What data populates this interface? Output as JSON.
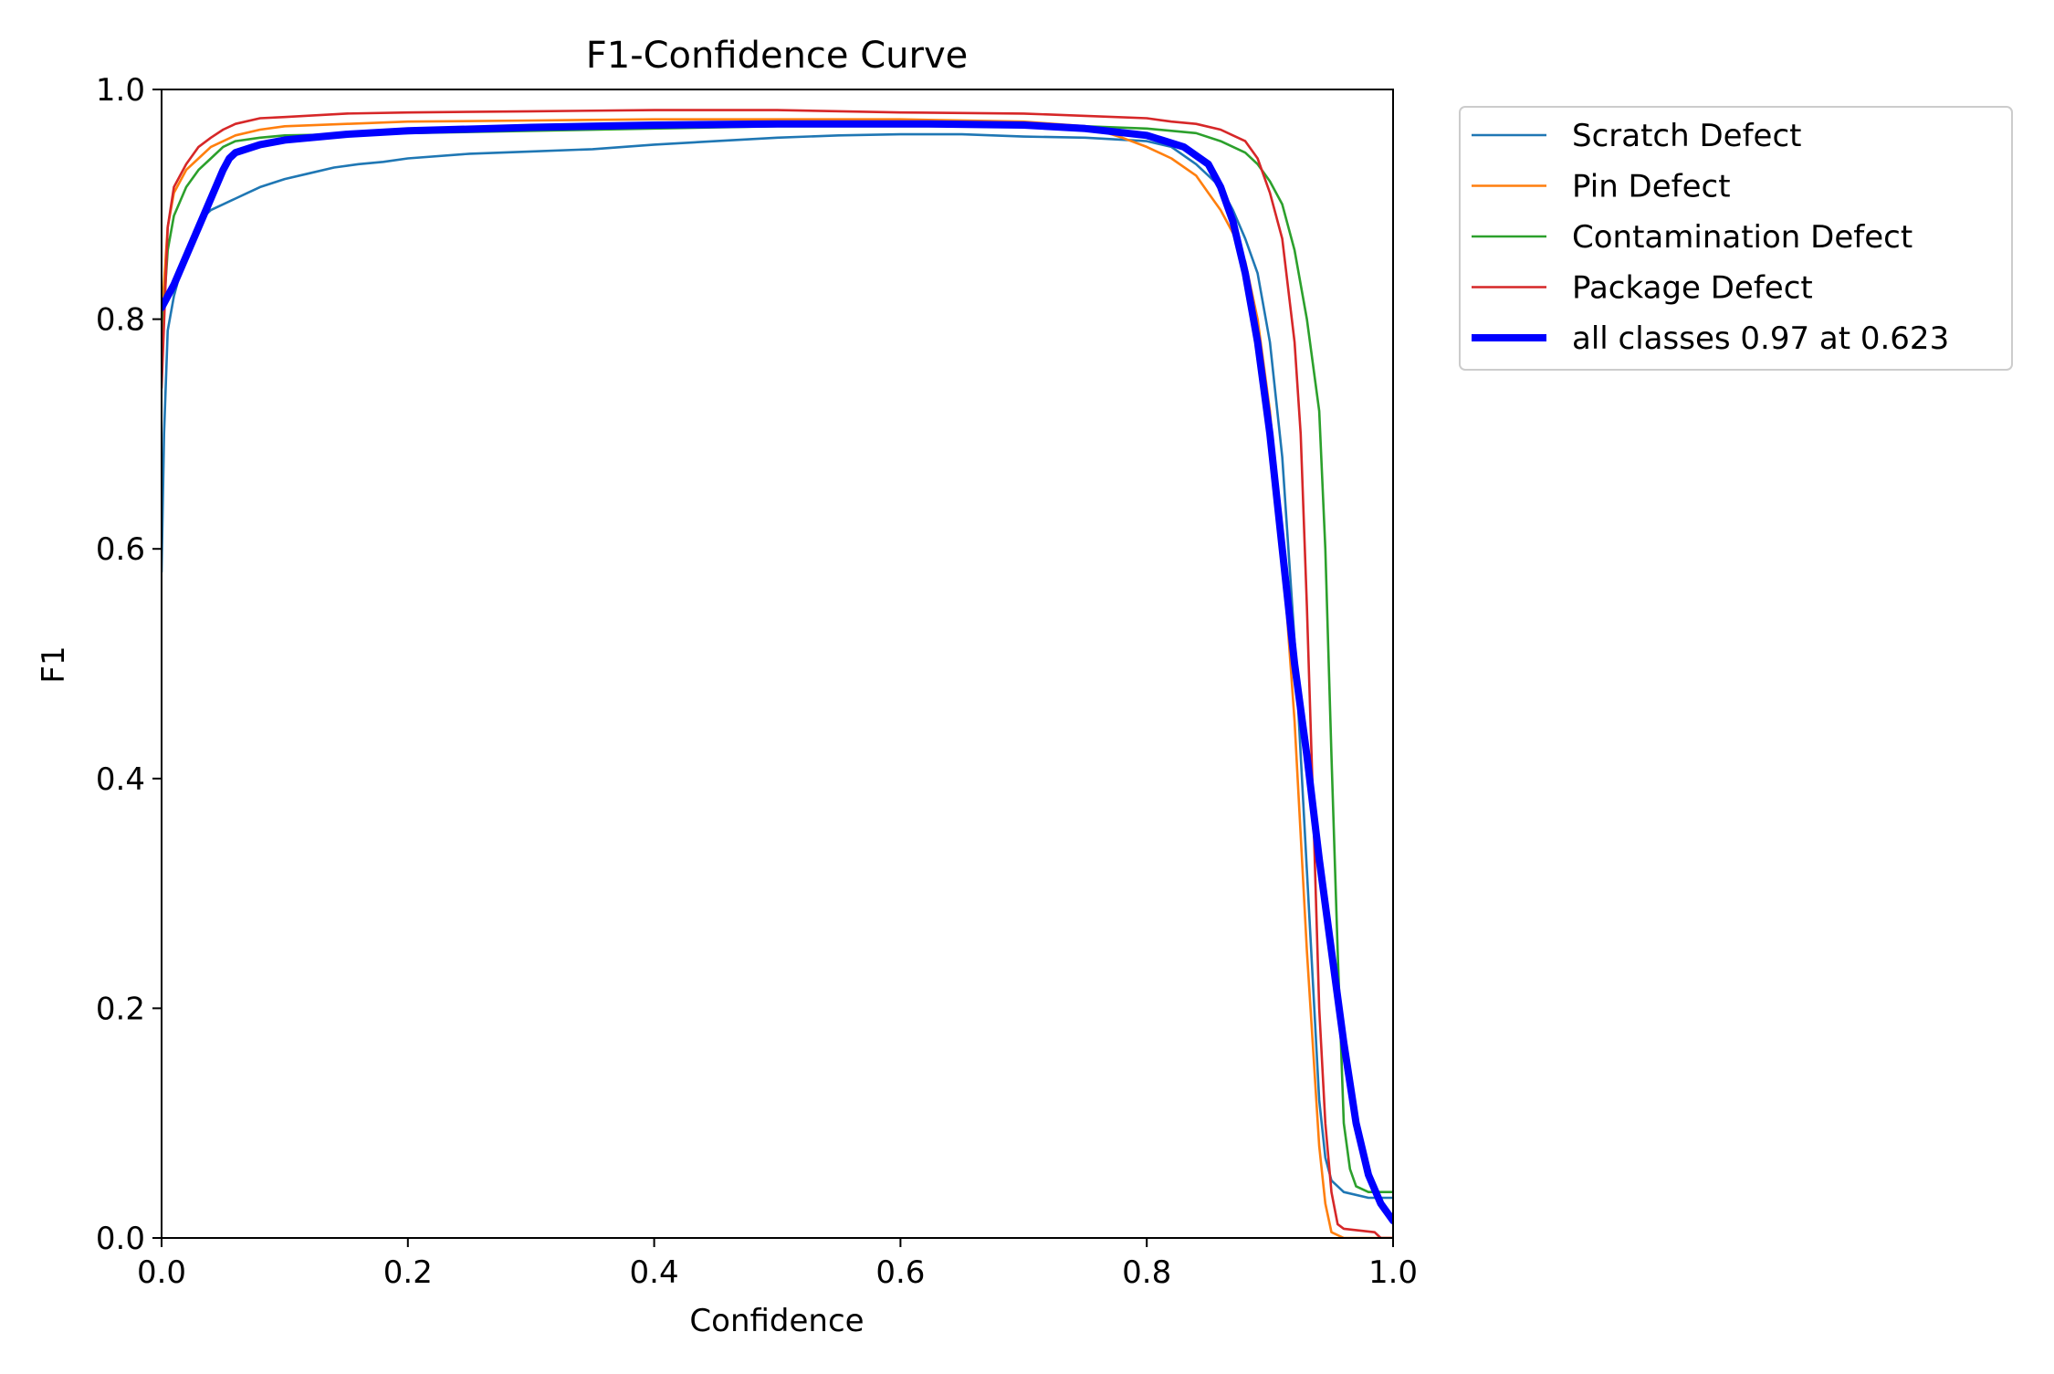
{
  "chart_data": {
    "type": "line",
    "title": "F1-Confidence Curve",
    "xlabel": "Confidence",
    "ylabel": "F1",
    "xlim": [
      0.0,
      1.0
    ],
    "ylim": [
      0.0,
      1.0
    ],
    "xticks": [
      "0.0",
      "0.2",
      "0.4",
      "0.6",
      "0.8",
      "1.0"
    ],
    "yticks": [
      "0.0",
      "0.2",
      "0.4",
      "0.6",
      "0.8",
      "1.0"
    ],
    "grid": false,
    "legend_position": "outside-upper-right",
    "series": [
      {
        "name": "Scratch Defect",
        "color": "#1f77b4",
        "thick": false,
        "points": [
          [
            0.0,
            0.58
          ],
          [
            0.002,
            0.7
          ],
          [
            0.005,
            0.79
          ],
          [
            0.01,
            0.82
          ],
          [
            0.02,
            0.86
          ],
          [
            0.03,
            0.885
          ],
          [
            0.04,
            0.895
          ],
          [
            0.05,
            0.9
          ],
          [
            0.06,
            0.905
          ],
          [
            0.07,
            0.91
          ],
          [
            0.08,
            0.915
          ],
          [
            0.1,
            0.922
          ],
          [
            0.12,
            0.927
          ],
          [
            0.14,
            0.932
          ],
          [
            0.16,
            0.935
          ],
          [
            0.18,
            0.937
          ],
          [
            0.2,
            0.94
          ],
          [
            0.25,
            0.944
          ],
          [
            0.3,
            0.946
          ],
          [
            0.35,
            0.948
          ],
          [
            0.4,
            0.952
          ],
          [
            0.45,
            0.955
          ],
          [
            0.5,
            0.958
          ],
          [
            0.55,
            0.96
          ],
          [
            0.6,
            0.961
          ],
          [
            0.65,
            0.961
          ],
          [
            0.7,
            0.959
          ],
          [
            0.75,
            0.958
          ],
          [
            0.8,
            0.955
          ],
          [
            0.82,
            0.95
          ],
          [
            0.84,
            0.935
          ],
          [
            0.86,
            0.915
          ],
          [
            0.87,
            0.895
          ],
          [
            0.88,
            0.87
          ],
          [
            0.89,
            0.84
          ],
          [
            0.9,
            0.78
          ],
          [
            0.91,
            0.68
          ],
          [
            0.92,
            0.52
          ],
          [
            0.93,
            0.32
          ],
          [
            0.94,
            0.12
          ],
          [
            0.945,
            0.07
          ],
          [
            0.95,
            0.05
          ],
          [
            0.96,
            0.04
          ],
          [
            0.98,
            0.035
          ],
          [
            1.0,
            0.035
          ]
        ]
      },
      {
        "name": "Pin Defect",
        "color": "#ff7f0e",
        "thick": false,
        "points": [
          [
            0.0,
            0.8
          ],
          [
            0.005,
            0.88
          ],
          [
            0.01,
            0.91
          ],
          [
            0.02,
            0.93
          ],
          [
            0.03,
            0.94
          ],
          [
            0.04,
            0.95
          ],
          [
            0.06,
            0.96
          ],
          [
            0.08,
            0.965
          ],
          [
            0.1,
            0.968
          ],
          [
            0.15,
            0.97
          ],
          [
            0.2,
            0.972
          ],
          [
            0.3,
            0.973
          ],
          [
            0.4,
            0.974
          ],
          [
            0.5,
            0.974
          ],
          [
            0.6,
            0.974
          ],
          [
            0.7,
            0.972
          ],
          [
            0.75,
            0.968
          ],
          [
            0.78,
            0.958
          ],
          [
            0.8,
            0.95
          ],
          [
            0.82,
            0.94
          ],
          [
            0.84,
            0.925
          ],
          [
            0.85,
            0.91
          ],
          [
            0.86,
            0.895
          ],
          [
            0.87,
            0.875
          ],
          [
            0.88,
            0.85
          ],
          [
            0.89,
            0.8
          ],
          [
            0.9,
            0.72
          ],
          [
            0.91,
            0.6
          ],
          [
            0.92,
            0.45
          ],
          [
            0.93,
            0.25
          ],
          [
            0.94,
            0.08
          ],
          [
            0.945,
            0.03
          ],
          [
            0.95,
            0.005
          ],
          [
            0.96,
            0.0
          ],
          [
            1.0,
            0.0
          ]
        ]
      },
      {
        "name": "Contamination Defect",
        "color": "#2ca02c",
        "thick": false,
        "points": [
          [
            0.0,
            0.78
          ],
          [
            0.005,
            0.86
          ],
          [
            0.01,
            0.89
          ],
          [
            0.02,
            0.915
          ],
          [
            0.03,
            0.93
          ],
          [
            0.04,
            0.94
          ],
          [
            0.05,
            0.95
          ],
          [
            0.06,
            0.955
          ],
          [
            0.08,
            0.958
          ],
          [
            0.1,
            0.96
          ],
          [
            0.2,
            0.962
          ],
          [
            0.3,
            0.964
          ],
          [
            0.4,
            0.966
          ],
          [
            0.5,
            0.968
          ],
          [
            0.6,
            0.968
          ],
          [
            0.7,
            0.968
          ],
          [
            0.75,
            0.968
          ],
          [
            0.8,
            0.966
          ],
          [
            0.84,
            0.962
          ],
          [
            0.86,
            0.955
          ],
          [
            0.88,
            0.945
          ],
          [
            0.89,
            0.935
          ],
          [
            0.9,
            0.92
          ],
          [
            0.91,
            0.9
          ],
          [
            0.92,
            0.86
          ],
          [
            0.93,
            0.8
          ],
          [
            0.94,
            0.72
          ],
          [
            0.945,
            0.6
          ],
          [
            0.95,
            0.42
          ],
          [
            0.955,
            0.25
          ],
          [
            0.96,
            0.1
          ],
          [
            0.965,
            0.06
          ],
          [
            0.97,
            0.045
          ],
          [
            0.98,
            0.04
          ],
          [
            1.0,
            0.04
          ]
        ]
      },
      {
        "name": "Package Defect",
        "color": "#d62728",
        "thick": false,
        "points": [
          [
            0.0,
            0.74
          ],
          [
            0.005,
            0.88
          ],
          [
            0.01,
            0.915
          ],
          [
            0.02,
            0.935
          ],
          [
            0.03,
            0.95
          ],
          [
            0.04,
            0.958
          ],
          [
            0.05,
            0.965
          ],
          [
            0.06,
            0.97
          ],
          [
            0.08,
            0.975
          ],
          [
            0.1,
            0.976
          ],
          [
            0.15,
            0.979
          ],
          [
            0.2,
            0.98
          ],
          [
            0.3,
            0.981
          ],
          [
            0.4,
            0.982
          ],
          [
            0.5,
            0.982
          ],
          [
            0.6,
            0.98
          ],
          [
            0.7,
            0.979
          ],
          [
            0.75,
            0.977
          ],
          [
            0.8,
            0.975
          ],
          [
            0.82,
            0.972
          ],
          [
            0.84,
            0.97
          ],
          [
            0.86,
            0.965
          ],
          [
            0.87,
            0.96
          ],
          [
            0.88,
            0.955
          ],
          [
            0.89,
            0.94
          ],
          [
            0.9,
            0.91
          ],
          [
            0.91,
            0.87
          ],
          [
            0.92,
            0.78
          ],
          [
            0.925,
            0.7
          ],
          [
            0.93,
            0.55
          ],
          [
            0.935,
            0.38
          ],
          [
            0.94,
            0.2
          ],
          [
            0.945,
            0.1
          ],
          [
            0.95,
            0.04
          ],
          [
            0.955,
            0.012
          ],
          [
            0.96,
            0.008
          ],
          [
            0.985,
            0.005
          ],
          [
            0.99,
            0.0
          ],
          [
            1.0,
            0.0
          ]
        ]
      },
      {
        "name": "all classes 0.97 at 0.623",
        "color": "#0000ff",
        "thick": true,
        "points": [
          [
            0.0,
            0.81
          ],
          [
            0.01,
            0.83
          ],
          [
            0.02,
            0.855
          ],
          [
            0.03,
            0.88
          ],
          [
            0.04,
            0.905
          ],
          [
            0.05,
            0.93
          ],
          [
            0.055,
            0.94
          ],
          [
            0.06,
            0.945
          ],
          [
            0.08,
            0.952
          ],
          [
            0.1,
            0.956
          ],
          [
            0.15,
            0.961
          ],
          [
            0.2,
            0.964
          ],
          [
            0.3,
            0.967
          ],
          [
            0.4,
            0.969
          ],
          [
            0.5,
            0.97
          ],
          [
            0.6,
            0.97
          ],
          [
            0.623,
            0.97
          ],
          [
            0.7,
            0.969
          ],
          [
            0.75,
            0.966
          ],
          [
            0.8,
            0.96
          ],
          [
            0.83,
            0.95
          ],
          [
            0.85,
            0.935
          ],
          [
            0.86,
            0.915
          ],
          [
            0.87,
            0.885
          ],
          [
            0.88,
            0.84
          ],
          [
            0.89,
            0.78
          ],
          [
            0.9,
            0.7
          ],
          [
            0.91,
            0.6
          ],
          [
            0.92,
            0.5
          ],
          [
            0.93,
            0.42
          ],
          [
            0.94,
            0.33
          ],
          [
            0.95,
            0.25
          ],
          [
            0.96,
            0.17
          ],
          [
            0.97,
            0.1
          ],
          [
            0.98,
            0.055
          ],
          [
            0.99,
            0.03
          ],
          [
            1.0,
            0.015
          ]
        ]
      }
    ]
  }
}
